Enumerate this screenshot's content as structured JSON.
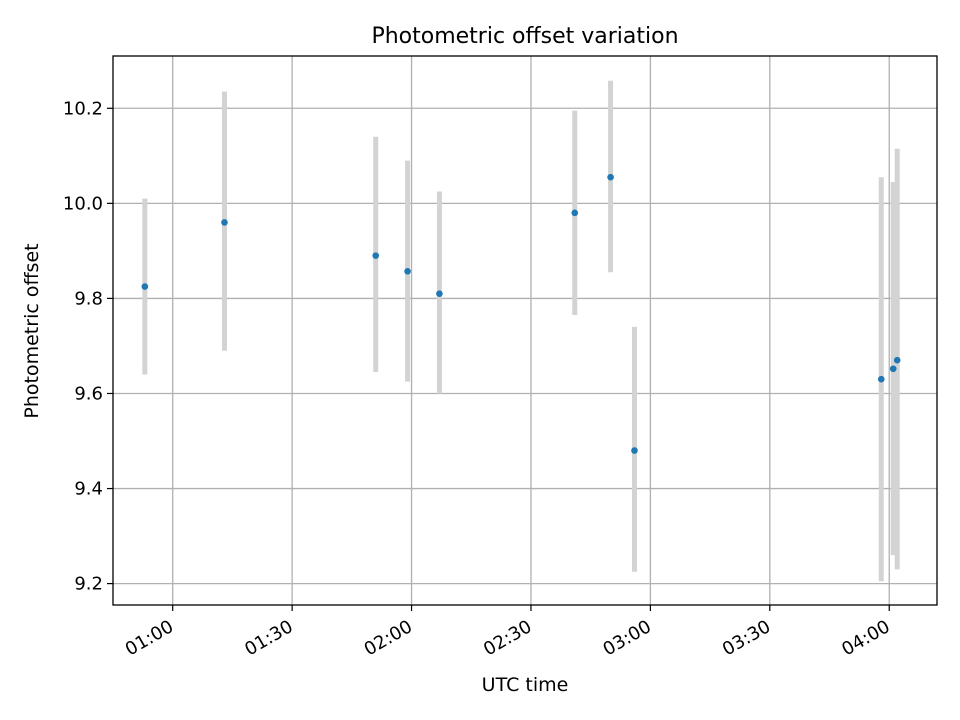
{
  "chart_data": {
    "type": "scatter",
    "title": "Photometric offset variation",
    "xlabel": "UTC time",
    "ylabel": "Photometric offset",
    "grid": true,
    "xlim": [
      "00:45",
      "04:12"
    ],
    "ylim": [
      9.155,
      10.31
    ],
    "x_ticks": [
      "01:00",
      "01:30",
      "02:00",
      "02:30",
      "03:00",
      "03:30",
      "04:00"
    ],
    "y_ticks": [
      9.2,
      9.4,
      9.6,
      9.8,
      10.0,
      10.2
    ],
    "y_tick_labels": [
      "9.2",
      "9.4",
      "9.6",
      "9.8",
      "10.0",
      "10.2"
    ],
    "colors": {
      "point": "#1f77b4",
      "errorbar": "#d3d3d3",
      "grid": "#b0b0b0"
    },
    "series": [
      {
        "points": [
          {
            "x": "00:53",
            "y": 9.825,
            "ylow": 9.64,
            "yhigh": 10.01
          },
          {
            "x": "01:13",
            "y": 9.96,
            "ylow": 9.69,
            "yhigh": 10.235
          },
          {
            "x": "01:51",
            "y": 9.89,
            "ylow": 9.645,
            "yhigh": 10.14
          },
          {
            "x": "01:59",
            "y": 9.857,
            "ylow": 9.625,
            "yhigh": 10.09
          },
          {
            "x": "02:07",
            "y": 9.81,
            "ylow": 9.6,
            "yhigh": 10.025
          },
          {
            "x": "02:41",
            "y": 9.98,
            "ylow": 9.765,
            "yhigh": 10.195
          },
          {
            "x": "02:50",
            "y": 10.055,
            "ylow": 9.855,
            "yhigh": 10.258
          },
          {
            "x": "02:56",
            "y": 9.48,
            "ylow": 9.225,
            "yhigh": 9.74
          },
          {
            "x": "03:58",
            "y": 9.63,
            "ylow": 9.205,
            "yhigh": 10.055
          },
          {
            "x": "04:01",
            "y": 9.652,
            "ylow": 9.26,
            "yhigh": 10.045
          },
          {
            "x": "04:02",
            "y": 9.67,
            "ylow": 9.23,
            "yhigh": 10.115
          }
        ]
      }
    ]
  }
}
